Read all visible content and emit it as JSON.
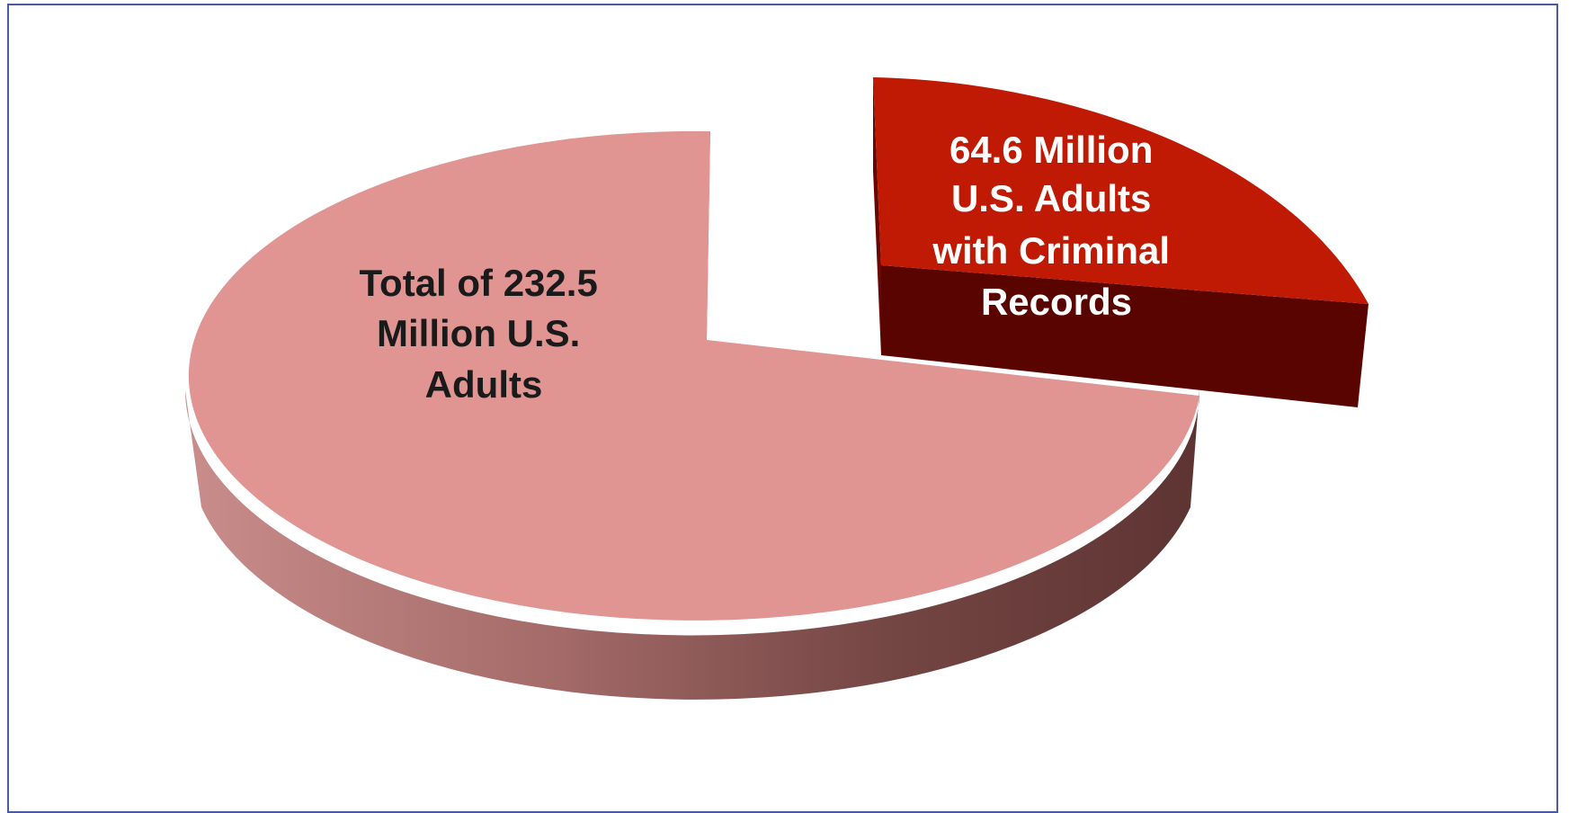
{
  "chart_data": {
    "type": "pie",
    "title": "",
    "slices": [
      {
        "label_lines": [
          "Total of 232.5",
          "Million U.S.",
          "Adults"
        ],
        "value": 232.5,
        "color": "#e09593",
        "exploded": false
      },
      {
        "label_lines": [
          "64.6 Million",
          "U.S. Adults",
          "with Criminal",
          "Records"
        ],
        "value": 64.6,
        "color": "#c01a05",
        "exploded": true
      }
    ],
    "legend": "none"
  }
}
